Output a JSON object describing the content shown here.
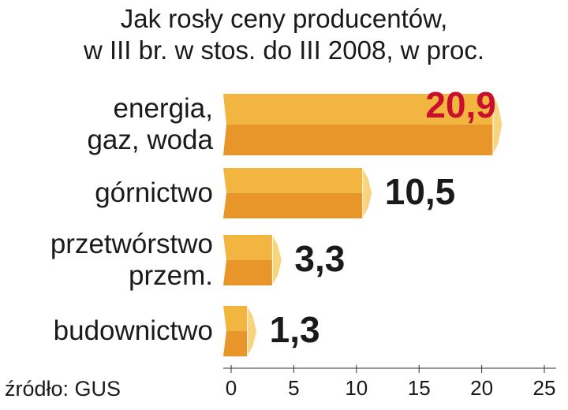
{
  "chart_data": {
    "type": "bar",
    "orientation": "horizontal",
    "title": "Jak rosły ceny producentów,\nw III br. w stos. do III 2008, w proc.",
    "source": "źródło: GUS",
    "categories": [
      "energia,\ngaz, woda",
      "górnictwo",
      "przetwórstwo\nprzem.",
      "budownictwo"
    ],
    "values": [
      20.9,
      10.5,
      3.3,
      1.3
    ],
    "value_labels": [
      "20,9",
      "10,5",
      "3,3",
      "1,3"
    ],
    "color": "#f2b53f",
    "shade_color": "#e8952a",
    "tip_color": "#f8d47e",
    "label_color": "#1a1a1a",
    "highlight": 0,
    "highlight_color": "#c8102e",
    "xlim": [
      0,
      25
    ],
    "xticks": [
      0,
      5,
      10,
      15,
      20,
      25
    ]
  }
}
